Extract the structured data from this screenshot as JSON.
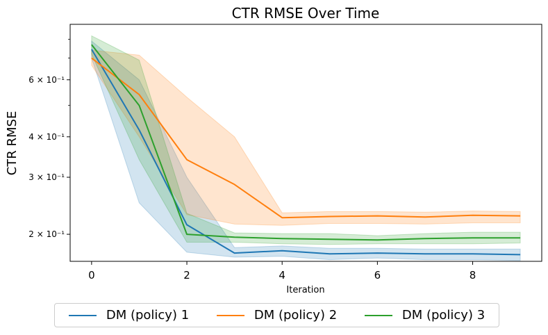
{
  "chart_data": {
    "type": "line",
    "title": "CTR RMSE Over Time",
    "xlabel": "Iteration",
    "ylabel": "CTR RMSE",
    "y_scale": "log",
    "xlim": [
      -0.45,
      9.45
    ],
    "ylim": [
      0.165,
      0.89
    ],
    "x_ticks": [
      0,
      2,
      4,
      6,
      8
    ],
    "y_ticks": [
      {
        "value": 0.6,
        "label": "6 × 10⁻¹"
      },
      {
        "value": 0.4,
        "label": "4 × 10⁻¹"
      },
      {
        "value": 0.3,
        "label": "3 × 10⁻¹"
      },
      {
        "value": 0.2,
        "label": "2 × 10⁻¹"
      }
    ],
    "y_minor_ticks": [
      0.5,
      0.7,
      0.8
    ],
    "grid": false,
    "legend_position": "bottom-center",
    "x": [
      0,
      1,
      2,
      3,
      4,
      5,
      6,
      7,
      8,
      9
    ],
    "series": [
      {
        "name": "DM (policy) 1",
        "color": "#1f77b4",
        "values": [
          0.745,
          0.42,
          0.214,
          0.175,
          0.178,
          0.174,
          0.175,
          0.174,
          0.174,
          0.173
        ],
        "lower": [
          0.7,
          0.25,
          0.176,
          0.17,
          0.171,
          0.167,
          0.169,
          0.167,
          0.167,
          0.166
        ],
        "upper": [
          0.79,
          0.6,
          0.3,
          0.182,
          0.184,
          0.181,
          0.181,
          0.18,
          0.18,
          0.18
        ]
      },
      {
        "name": "DM (policy) 2",
        "color": "#ff7f0e",
        "values": [
          0.7,
          0.54,
          0.34,
          0.285,
          0.225,
          0.227,
          0.228,
          0.226,
          0.229,
          0.228
        ],
        "lower": [
          0.665,
          0.4,
          0.23,
          0.215,
          0.213,
          0.216,
          0.216,
          0.215,
          0.217,
          0.217
        ],
        "upper": [
          0.74,
          0.715,
          0.53,
          0.4,
          0.233,
          0.235,
          0.235,
          0.234,
          0.236,
          0.235
        ]
      },
      {
        "name": "DM (policy) 3",
        "color": "#2ca02c",
        "values": [
          0.77,
          0.5,
          0.2,
          0.196,
          0.194,
          0.193,
          0.192,
          0.194,
          0.195,
          0.195
        ],
        "lower": [
          0.72,
          0.34,
          0.189,
          0.189,
          0.187,
          0.186,
          0.187,
          0.187,
          0.187,
          0.188
        ],
        "upper": [
          0.82,
          0.69,
          0.232,
          0.202,
          0.201,
          0.201,
          0.198,
          0.201,
          0.203,
          0.203
        ]
      }
    ]
  }
}
